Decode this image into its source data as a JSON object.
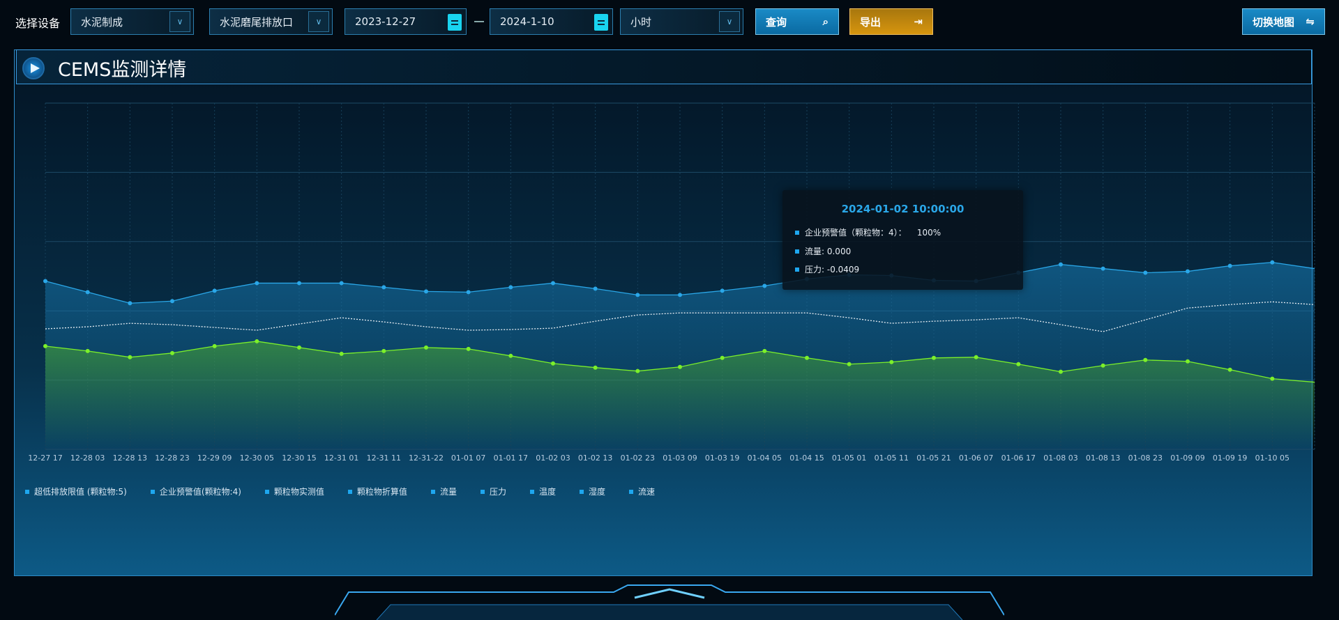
{
  "toolbar": {
    "device_label": "选择设备",
    "device_select": "水泥制成",
    "outlet_select": "水泥磨尾排放口",
    "start_date": "2023-12-27",
    "end_date": "2024-1-10",
    "interval_select": "小时",
    "query_label": "查询",
    "export_label": "导出",
    "switch_map_label": "切换地图"
  },
  "panel": {
    "title": "CEMS监测详情"
  },
  "tooltip": {
    "time": "2024-01-02 10:00:00",
    "rows": [
      "企业预警值（颗粒物：4）：    100%",
      "流量: 0.000",
      "压力: -0.0409"
    ]
  },
  "legend": [
    "超低排放限值 (颗粒物:5)",
    "企业预警值(颗粒物:4)",
    "颗粒物实测值",
    "颗粒物折算值",
    "流量",
    "压力",
    "温度",
    "湿度",
    "流速"
  ],
  "chart_data": {
    "type": "line",
    "categories": [
      "12-27 17",
      "12-28 03",
      "12-28 13",
      "12-28 23",
      "12-29 09",
      "12-30 05",
      "12-30 15",
      "12-31 01",
      "12-31 11",
      "12-31-22",
      "01-01 07",
      "01-01 17",
      "01-02 03",
      "01-02 13",
      "01-02 23",
      "01-03 09",
      "01-03 19",
      "01-04 05",
      "01-04 15",
      "01-05 01",
      "01-05 11",
      "01-05 21",
      "01-06 07",
      "01-06 17",
      "01-08 03",
      "01-08 13",
      "01-08 23",
      "01-09 09",
      "01-09 19",
      "01-10 05",
      ""
    ],
    "ylim": [
      0,
      5
    ],
    "grid": true,
    "legend_position": "bottom-left",
    "series": [
      {
        "color": "#2aa7e8",
        "style": "solid-area",
        "markers": true,
        "values": [
          2.43,
          2.27,
          2.11,
          2.14,
          2.29,
          2.4,
          2.4,
          2.4,
          2.34,
          2.28,
          2.27,
          2.34,
          2.4,
          2.32,
          2.23,
          2.23,
          2.29,
          2.36,
          2.46,
          2.52,
          2.51,
          2.44,
          2.43,
          2.55,
          2.67,
          2.61,
          2.55,
          2.57,
          2.65,
          2.7,
          2.61
        ]
      },
      {
        "color": "#e8eef4",
        "style": "dotted",
        "markers": false,
        "values": [
          1.74,
          1.77,
          1.82,
          1.8,
          1.76,
          1.72,
          1.81,
          1.9,
          1.84,
          1.77,
          1.72,
          1.73,
          1.75,
          1.85,
          1.94,
          1.97,
          1.97,
          1.97,
          1.97,
          1.9,
          1.82,
          1.85,
          1.87,
          1.9,
          1.8,
          1.7,
          1.87,
          2.04,
          2.09,
          2.13,
          2.09
        ]
      },
      {
        "color": "#7cf02a",
        "style": "solid-area",
        "markers": true,
        "values": [
          1.49,
          1.42,
          1.33,
          1.39,
          1.49,
          1.56,
          1.47,
          1.38,
          1.42,
          1.47,
          1.45,
          1.35,
          1.24,
          1.18,
          1.13,
          1.19,
          1.32,
          1.42,
          1.32,
          1.23,
          1.26,
          1.32,
          1.33,
          1.23,
          1.12,
          1.21,
          1.29,
          1.27,
          1.15,
          1.02,
          0.97
        ]
      }
    ]
  }
}
